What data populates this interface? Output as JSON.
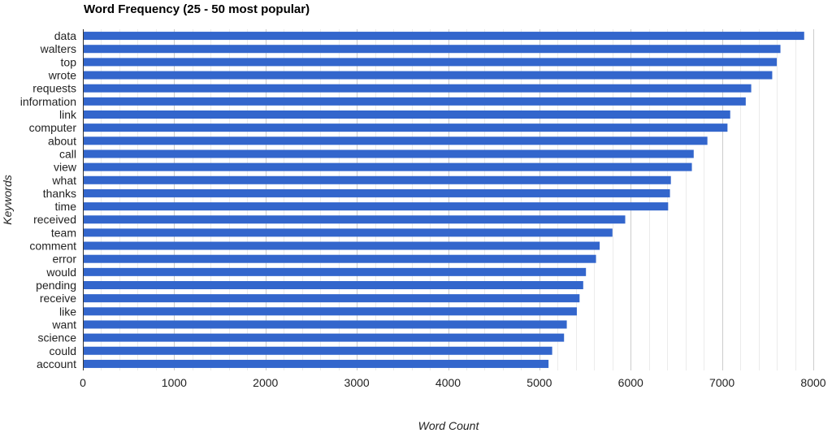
{
  "chart_data": {
    "type": "bar",
    "orientation": "horizontal",
    "title": "Word Frequency (25 - 50 most popular)",
    "xlabel": "Word Count",
    "ylabel": "Keywords",
    "xlim": [
      0,
      8000
    ],
    "xticks": [
      "0",
      "1000",
      "2000",
      "3000",
      "4000",
      "5000",
      "6000",
      "7000",
      "8000"
    ],
    "grid": true,
    "bar_color": "#3366cc",
    "categories": [
      "data",
      "walters",
      "top",
      "wrote",
      "requests",
      "information",
      "link",
      "computer",
      "about",
      "call",
      "view",
      "what",
      "thanks",
      "time",
      "received",
      "team",
      "comment",
      "error",
      "would",
      "pending",
      "receive",
      "like",
      "want",
      "science",
      "could",
      "account"
    ],
    "values": [
      7900,
      7640,
      7600,
      7550,
      7320,
      7260,
      7090,
      7060,
      6840,
      6690,
      6670,
      6440,
      6430,
      6410,
      5940,
      5800,
      5660,
      5620,
      5510,
      5480,
      5440,
      5410,
      5300,
      5270,
      5140,
      5100
    ]
  }
}
